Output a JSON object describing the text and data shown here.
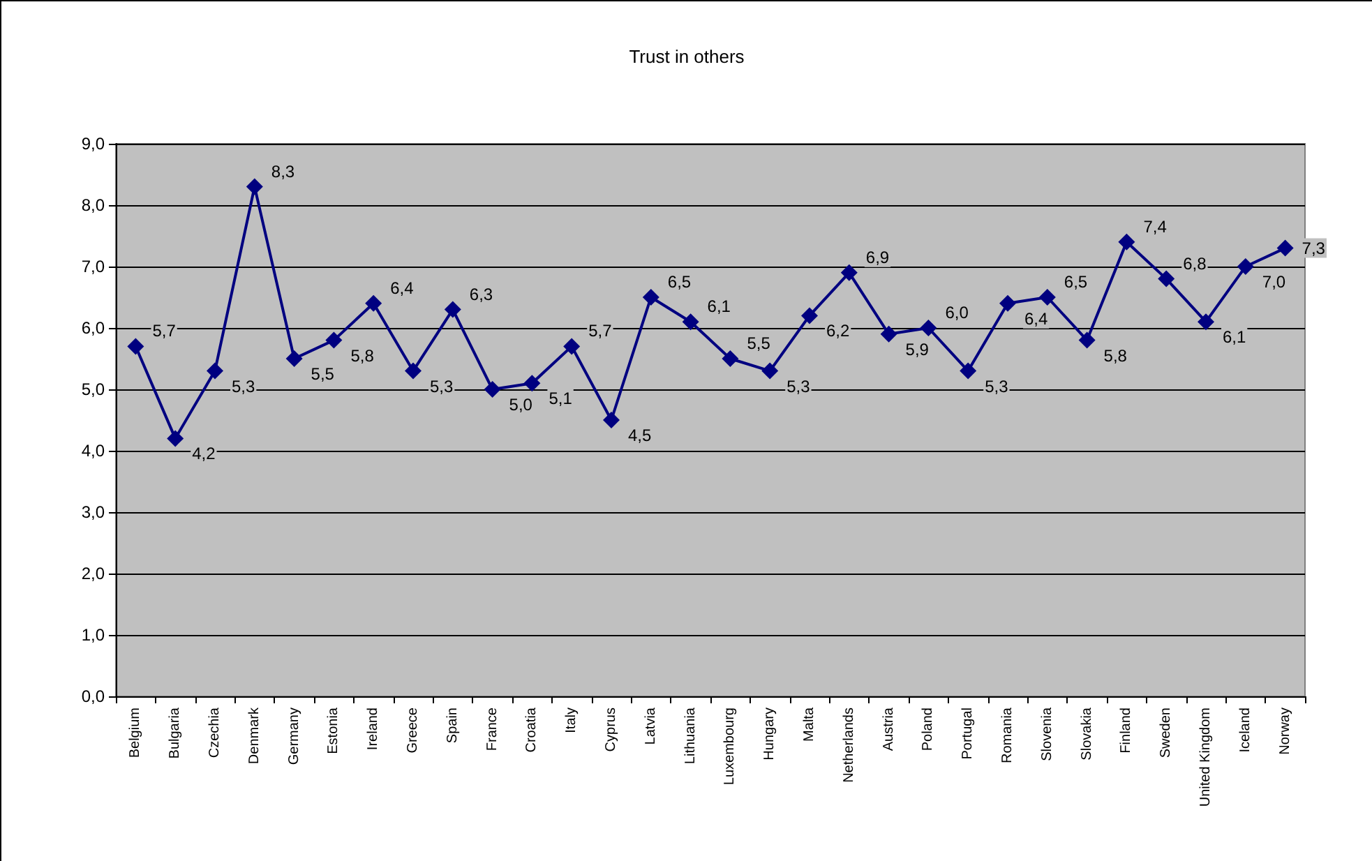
{
  "chart_data": {
    "type": "line",
    "title": "Trust in others",
    "categories": [
      "Belgium",
      "Bulgaria",
      "Czechia",
      "Denmark",
      "Germany",
      "Estonia",
      "Ireland",
      "Greece",
      "Spain",
      "France",
      "Croatia",
      "Italy",
      "Cyprus",
      "Latvia",
      "Lithuania",
      "Luxembourg",
      "Hungary",
      "Malta",
      "Netherlands",
      "Austria",
      "Poland",
      "Portugal",
      "Romania",
      "Slovenia",
      "Slovakia",
      "Finland",
      "Sweden",
      "United Kingdom",
      "Iceland",
      "Norway"
    ],
    "series": [
      {
        "color": "#000080",
        "values": [
          5.7,
          4.2,
          5.3,
          8.3,
          5.5,
          5.8,
          6.4,
          5.3,
          6.3,
          5.0,
          5.1,
          5.7,
          4.5,
          6.5,
          6.1,
          5.5,
          5.3,
          6.2,
          6.9,
          5.9,
          6.0,
          5.3,
          6.4,
          6.5,
          5.8,
          7.4,
          6.8,
          6.1,
          7.0,
          7.3
        ],
        "value_labels": [
          "5,7",
          "4,2",
          "5,3",
          "8,3",
          "5,5",
          "5,8",
          "6,4",
          "5,3",
          "6,3",
          "5,0",
          "5,1",
          "5,7",
          "4,5",
          "6,5",
          "6,1",
          "5,5",
          "5,3",
          "6,2",
          "6,9",
          "5,9",
          "6,0",
          "5,3",
          "6,4",
          "6,5",
          "5,8",
          "7,4",
          "6,8",
          "6,1",
          "7,0",
          "7,3"
        ]
      }
    ],
    "ylim": [
      0,
      9
    ],
    "yticks": [
      {
        "value": 0,
        "label": "0,0"
      },
      {
        "value": 1,
        "label": "1,0"
      },
      {
        "value": 2,
        "label": "2,0"
      },
      {
        "value": 3,
        "label": "3,0"
      },
      {
        "value": 4,
        "label": "4,0"
      },
      {
        "value": 5,
        "label": "5,0"
      },
      {
        "value": 6,
        "label": "6,0"
      },
      {
        "value": 7,
        "label": "7,0"
      },
      {
        "value": 8,
        "label": "8,0"
      },
      {
        "value": 9,
        "label": "9,0"
      }
    ],
    "grid": "y",
    "marker": "diamond",
    "line_style": "solid"
  }
}
